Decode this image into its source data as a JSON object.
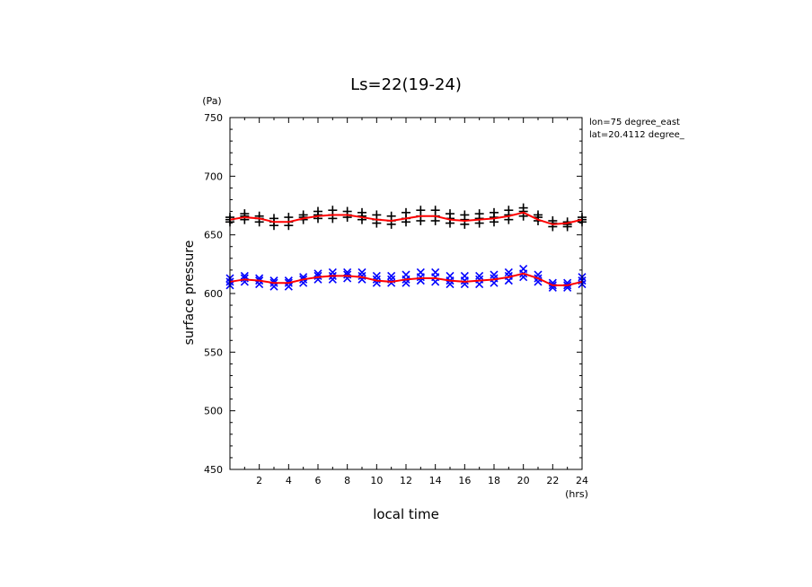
{
  "chart_data": {
    "type": "scatter",
    "title": "Ls=22(19-24)",
    "xlabel": "local time",
    "ylabel": "surface pressure",
    "xunit": "(hrs)",
    "yunit": "(Pa)",
    "xlim": [
      0,
      24
    ],
    "ylim": [
      450,
      750
    ],
    "xticks": [
      2,
      4,
      6,
      8,
      10,
      12,
      14,
      16,
      18,
      20,
      22,
      24
    ],
    "yticks": [
      450,
      500,
      550,
      600,
      650,
      700,
      750
    ],
    "annotations": [
      "lon=75 degree_east",
      "lat=20.4112 degree_"
    ],
    "colors": {
      "upper_markers": "#000000",
      "lower_markers": "#0000ff",
      "mean_line": "#ff0000"
    },
    "x": [
      0,
      1,
      2,
      3,
      4,
      5,
      6,
      7,
      8,
      9,
      10,
      11,
      12,
      13,
      14,
      15,
      16,
      17,
      18,
      19,
      20,
      21,
      22,
      23,
      24
    ],
    "series": [
      {
        "marker": "plus",
        "values": [
          [
            661,
            663,
            665
          ],
          [
            663,
            666,
            668
          ],
          [
            661,
            664,
            666
          ],
          [
            658,
            661,
            664
          ],
          [
            658,
            661,
            665
          ],
          [
            663,
            665,
            667
          ],
          [
            664,
            667,
            670
          ],
          [
            664,
            667,
            671
          ],
          [
            665,
            667,
            670
          ],
          [
            663,
            666,
            669
          ],
          [
            660,
            663,
            667
          ],
          [
            659,
            662,
            666
          ],
          [
            661,
            664,
            669
          ],
          [
            662,
            666,
            671
          ],
          [
            662,
            666,
            671
          ],
          [
            660,
            664,
            668
          ],
          [
            659,
            663,
            667
          ],
          [
            660,
            664,
            668
          ],
          [
            661,
            665,
            669
          ],
          [
            663,
            667,
            671
          ],
          [
            666,
            670,
            673
          ],
          [
            662,
            665,
            667
          ],
          [
            657,
            660,
            662
          ],
          [
            657,
            659,
            661
          ],
          [
            661,
            663,
            665
          ]
        ]
      },
      {
        "marker": "cross",
        "values": [
          [
            607,
            610,
            613
          ],
          [
            610,
            613,
            615
          ],
          [
            608,
            611,
            613
          ],
          [
            606,
            609,
            611
          ],
          [
            606,
            609,
            611
          ],
          [
            609,
            612,
            614
          ],
          [
            612,
            615,
            617
          ],
          [
            612,
            615,
            618
          ],
          [
            613,
            616,
            618
          ],
          [
            612,
            615,
            618
          ],
          [
            609,
            612,
            615
          ],
          [
            609,
            612,
            615
          ],
          [
            609,
            612,
            616
          ],
          [
            611,
            614,
            618
          ],
          [
            610,
            614,
            618
          ],
          [
            608,
            611,
            615
          ],
          [
            608,
            611,
            615
          ],
          [
            608,
            612,
            615
          ],
          [
            609,
            613,
            616
          ],
          [
            611,
            615,
            618
          ],
          [
            614,
            617,
            621
          ],
          [
            610,
            613,
            616
          ],
          [
            605,
            607,
            609
          ],
          [
            605,
            607,
            609
          ],
          [
            608,
            611,
            614
          ]
        ]
      }
    ],
    "lines": [
      {
        "values": [
          663,
          665,
          664,
          661,
          661,
          664,
          666,
          667,
          667,
          665,
          663,
          662,
          664,
          666,
          666,
          663,
          662,
          663,
          664,
          666,
          669,
          663,
          659,
          660,
          663
        ]
      },
      {
        "values": [
          610,
          612,
          611,
          609,
          609,
          612,
          614,
          615,
          615,
          614,
          611,
          610,
          612,
          613,
          613,
          611,
          610,
          611,
          612,
          614,
          617,
          613,
          607,
          607,
          610
        ]
      }
    ]
  }
}
